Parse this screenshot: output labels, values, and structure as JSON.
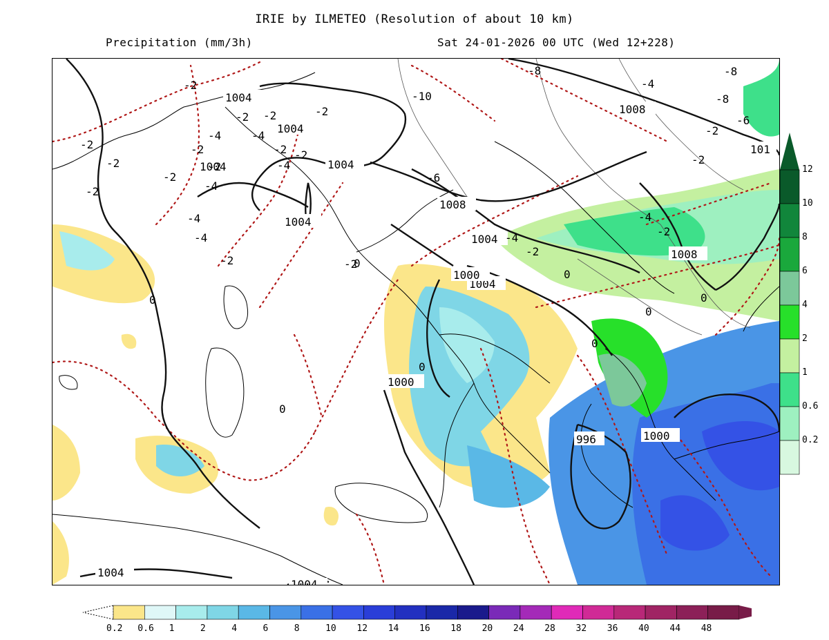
{
  "header": {
    "title": "IRIE by ILMETEO (Resolution of about 10 km)",
    "variable": "Precipitation (mm/3h)",
    "valid_time": "Sat 24-01-2026 00 UTC (Wed 12+228)"
  },
  "map": {
    "isobar_labels": [
      "1004",
      "1004",
      "1004",
      "1004",
      "1004",
      "1004",
      "1008",
      "1008",
      "1008",
      "1004",
      "1000",
      "1000",
      "1000",
      "996",
      "101",
      "1004",
      "1004"
    ],
    "isotherm_labels": [
      "-2",
      "-2",
      "-2",
      "-2",
      "-2",
      "-4",
      "-4",
      "-2",
      "-2",
      "-4",
      "-2",
      "-2",
      "-4",
      "-2",
      "-4",
      "-2",
      "-2",
      "-2",
      "-4",
      "-2",
      "-8",
      "-10",
      "-4",
      "-6",
      "-8",
      "-8",
      "-6",
      "-2",
      "-2",
      "-4",
      "-2",
      "-4",
      "-2",
      "0",
      "0",
      "0",
      "0",
      "0",
      "0",
      "0",
      "0"
    ]
  },
  "precip_scale": {
    "labels": [
      "0.2",
      "0.6",
      "1",
      "2",
      "4",
      "6",
      "8",
      "10",
      "12",
      "14",
      "16",
      "18",
      "20",
      "24",
      "28",
      "32",
      "36",
      "40",
      "44",
      "48"
    ],
    "colors": [
      "#fbe68a",
      "#dff7f7",
      "#a8ecec",
      "#7fd6e6",
      "#5ab8e6",
      "#4a95e6",
      "#3a70e6",
      "#3452e6",
      "#2a3ed8",
      "#2230c0",
      "#1a28a8",
      "#1a1a8c",
      "#7a2ab8",
      "#a42ab8",
      "#e02ab8",
      "#d02a96",
      "#b82878",
      "#a02464",
      "#8c2058",
      "#781c48"
    ]
  },
  "snow_scale": {
    "labels": [
      "12",
      "10",
      "8",
      "6",
      "4",
      "2",
      "1",
      "0.6",
      "0.2"
    ],
    "colors": [
      "#0a5a2a",
      "#11863b",
      "#1aa83c",
      "#7cc89a",
      "#27e02a",
      "#c4f0a0",
      "#3ee08a",
      "#9ef0c0",
      "#d8f8e0"
    ]
  }
}
